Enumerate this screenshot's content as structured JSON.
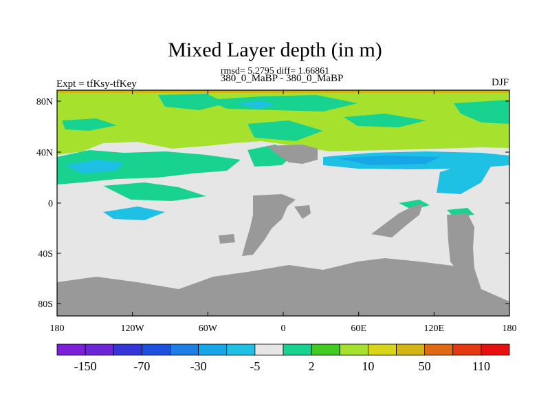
{
  "title": "Mixed Layer depth (in m)",
  "subtitle": "rmsd= 5.2795 diff= 1.66861",
  "center_label": "380_0_MaBP - 380_0_MaBP",
  "left_label": "Expt = tfKsy-tfKey",
  "right_label": "DJF",
  "lat_labels": [
    "80N",
    "40N",
    "0",
    "40S",
    "80S"
  ],
  "lon_labels": [
    "180",
    "120W",
    "60W",
    "0",
    "60E",
    "120E",
    "180"
  ],
  "colorbar": {
    "colors": [
      "#7b1fd9",
      "#6b24d6",
      "#3535d8",
      "#1e50e0",
      "#1f7ee6",
      "#17a7e8",
      "#1ec0e4",
      "#e6e6e6",
      "#17d38f",
      "#42cc23",
      "#a6e22d",
      "#d9d61a",
      "#d3b514",
      "#e06a12",
      "#e33a12",
      "#e6110f"
    ],
    "labels": [
      "-150",
      "-70",
      "-30",
      "-5",
      "2",
      "10",
      "50",
      "110"
    ]
  },
  "colors": {
    "land": "#999999",
    "near_zero": "#e6e6e6",
    "positive_small": "#a6e22d",
    "positive_green": "#17d38f",
    "negative_small": "#1ec0e4",
    "negative_mid": "#17a7e8"
  }
}
